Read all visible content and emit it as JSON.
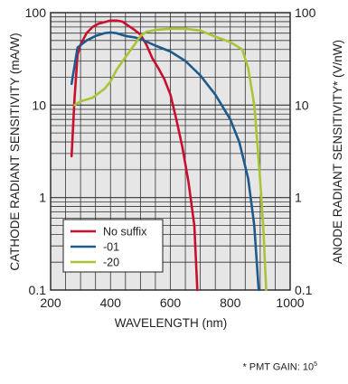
{
  "chart_data": {
    "type": "line",
    "title": "",
    "xlabel": "WAVELENGTH (nm)",
    "ylabel": "CATHODE RADIANT SENSITIVITY (mA/W)",
    "ylabel_right": "ANODE RADIANT SENSITIVITY* (V/nW)",
    "xlim": [
      200,
      1000
    ],
    "ylim": [
      0.1,
      100
    ],
    "yscale": "log",
    "x_ticks": [
      "200",
      "400",
      "600",
      "800",
      "1000"
    ],
    "y_ticks": [
      "0.1",
      "1",
      "10",
      "100"
    ],
    "grid": true,
    "legend_position": "lower-left",
    "series": [
      {
        "name": "No suffix",
        "color": "#c8102e",
        "points": [
          [
            270,
            2.8
          ],
          [
            280,
            12
          ],
          [
            290,
            35
          ],
          [
            300,
            45
          ],
          [
            320,
            60
          ],
          [
            340,
            70
          ],
          [
            360,
            76
          ],
          [
            380,
            79
          ],
          [
            400,
            82
          ],
          [
            420,
            82
          ],
          [
            440,
            80
          ],
          [
            460,
            72
          ],
          [
            480,
            65
          ],
          [
            500,
            58
          ],
          [
            520,
            45
          ],
          [
            540,
            32
          ],
          [
            560,
            25
          ],
          [
            580,
            19
          ],
          [
            600,
            13
          ],
          [
            620,
            7
          ],
          [
            640,
            3.5
          ],
          [
            660,
            1.5
          ],
          [
            680,
            0.5
          ],
          [
            690,
            0.1
          ]
        ]
      },
      {
        "name": "-01",
        "color": "#1f5a8c",
        "points": [
          [
            270,
            17
          ],
          [
            290,
            42
          ],
          [
            320,
            50
          ],
          [
            350,
            56
          ],
          [
            380,
            60
          ],
          [
            400,
            61
          ],
          [
            420,
            60
          ],
          [
            450,
            56
          ],
          [
            480,
            54
          ],
          [
            500,
            52
          ],
          [
            550,
            44
          ],
          [
            600,
            38
          ],
          [
            650,
            30
          ],
          [
            700,
            21
          ],
          [
            750,
            13
          ],
          [
            800,
            7
          ],
          [
            830,
            4
          ],
          [
            860,
            1.6
          ],
          [
            880,
            0.5
          ],
          [
            895,
            0.1
          ]
        ]
      },
      {
        "name": "-20",
        "color": "#a7c537",
        "points": [
          [
            280,
            10
          ],
          [
            300,
            11
          ],
          [
            340,
            12
          ],
          [
            380,
            15
          ],
          [
            400,
            18
          ],
          [
            420,
            24
          ],
          [
            450,
            33
          ],
          [
            480,
            45
          ],
          [
            500,
            56
          ],
          [
            520,
            62
          ],
          [
            550,
            65
          ],
          [
            600,
            67
          ],
          [
            650,
            67
          ],
          [
            700,
            64
          ],
          [
            750,
            55
          ],
          [
            800,
            48
          ],
          [
            840,
            40
          ],
          [
            860,
            25
          ],
          [
            880,
            10
          ],
          [
            890,
            4
          ],
          [
            900,
            1.5
          ],
          [
            910,
            0.5
          ],
          [
            920,
            0.1
          ]
        ]
      }
    ]
  },
  "right_axis": {
    "y_ticks": [
      "0.1",
      "1",
      "10",
      "100"
    ]
  },
  "footnote": {
    "text": "* PMT GAIN: 10",
    "exponent": "5"
  }
}
